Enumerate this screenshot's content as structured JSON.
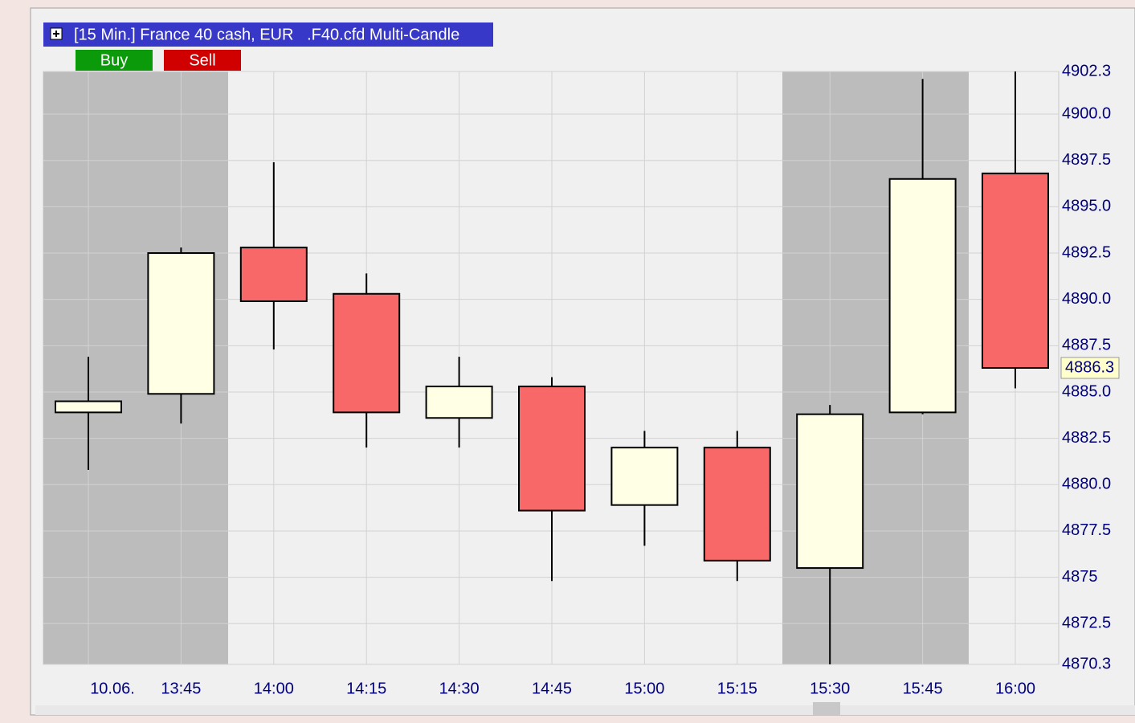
{
  "chart_data": {
    "type": "candlestick",
    "title": "[15 Min.] France 40 cash, EUR   .F40.cfd Multi-Candle",
    "buttons": [
      "Buy",
      "Sell"
    ],
    "date_label": "10.06.",
    "categories": [
      null,
      "13:45",
      "14:00",
      "14:15",
      "14:30",
      "14:45",
      "15:00",
      "15:15",
      "15:30",
      "15:45",
      "16:00"
    ],
    "open": [
      4883.9,
      4884.9,
      4892.8,
      4890.3,
      4883.6,
      4885.3,
      4878.9,
      4882.0,
      4875.5,
      4883.9,
      4896.8
    ],
    "high": [
      4886.9,
      4892.8,
      4897.4,
      4891.4,
      4886.9,
      4885.8,
      4882.9,
      4882.9,
      4884.3,
      4901.9,
      4902.3
    ],
    "low": [
      4880.8,
      4883.3,
      4887.3,
      4882.0,
      4882.0,
      4874.8,
      4876.7,
      4874.8,
      4870.3,
      4883.8,
      4885.2
    ],
    "close": [
      4884.5,
      4892.5,
      4889.9,
      4883.9,
      4885.3,
      4878.6,
      4882.0,
      4875.9,
      4883.8,
      4896.5,
      4886.3
    ],
    "up_color": "#ffffe6",
    "down_color": "#f86868",
    "last_price": 4886.3,
    "ylim": [
      4870.3,
      4902.3
    ],
    "yticks": [
      4870.3,
      4872.5,
      4875,
      {
        "value": 4877.5,
        "label": "4877.5"
      },
      {
        "value": 4880,
        "label": "4880.0"
      },
      4882.5,
      {
        "value": 4885,
        "label": "4885.0"
      },
      4887.5,
      {
        "value": 4890,
        "label": "4890.0"
      },
      4892.5,
      {
        "value": 4895,
        "label": "4895.0"
      },
      4897.5,
      {
        "value": 4900,
        "label": "4900.0"
      },
      4902.3
    ],
    "grid": true
  }
}
